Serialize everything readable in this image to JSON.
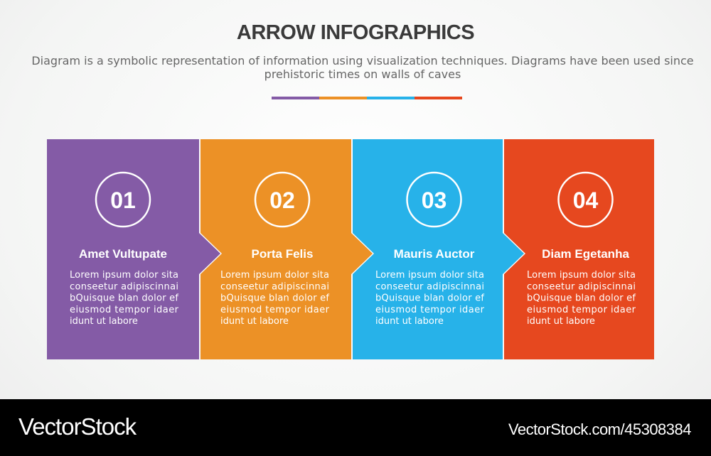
{
  "header": {
    "title": "ARROW INFOGRAPHICS",
    "subtitle": "Diagram is a symbolic representation of information using visualization techniques. Diagrams have been used since prehistoric times on walls of caves"
  },
  "colors": {
    "purple": "#845ba6",
    "orange": "#ec9126",
    "blue": "#27b2e9",
    "red": "#e6481f"
  },
  "steps": [
    {
      "number": "01",
      "title": "Amet Vultupate",
      "color": "#845ba6",
      "lines": [
        "Lorem ipsum dolor sita",
        "conseetur adipiscinnai",
        "bQuisque blan dolor ef",
        "eiusmod tempor idaer",
        "idunt ut labore"
      ]
    },
    {
      "number": "02",
      "title": "Porta Felis",
      "color": "#ec9126",
      "lines": [
        "Lorem ipsum dolor sita",
        "conseetur adipiscinnai",
        "bQuisque blan dolor ef",
        "eiusmod tempor idaer",
        "idunt ut labore"
      ]
    },
    {
      "number": "03",
      "title": "Mauris Auctor",
      "color": "#27b2e9",
      "lines": [
        "Lorem ipsum dolor sita",
        "conseetur adipiscinnai",
        "bQuisque blan dolor ef",
        "eiusmod tempor idaer",
        "idunt ut labore"
      ]
    },
    {
      "number": "04",
      "title": "Diam Egetanha",
      "color": "#e6481f",
      "lines": [
        "Lorem ipsum dolor sita",
        "conseetur adipiscinnai",
        "bQuisque blan dolor ef",
        "eiusmod tempor idaer",
        "idunt ut labore"
      ]
    }
  ],
  "footer": {
    "logo": "VectorStock",
    "url": "VectorStock.com/45308384"
  }
}
